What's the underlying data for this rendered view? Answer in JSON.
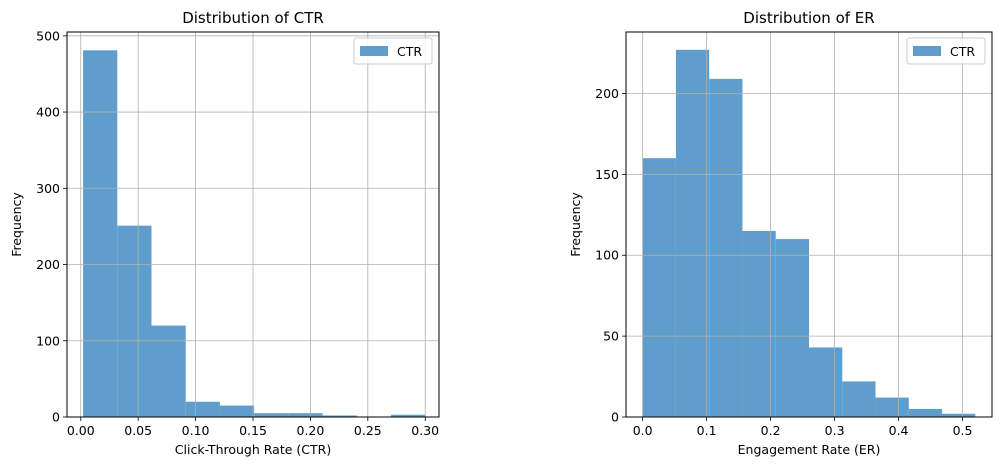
{
  "chart_data": [
    {
      "type": "bar",
      "title": "Distribution of CTR",
      "xlabel": "Click-Through Rate (CTR)",
      "ylabel": "Frequency",
      "xlim": [
        -0.012,
        0.312
      ],
      "ylim": [
        0,
        505
      ],
      "xticks": [
        0.0,
        0.05,
        0.1,
        0.15,
        0.2,
        0.25,
        0.3
      ],
      "xtick_labels": [
        "0.00",
        "0.05",
        "0.10",
        "0.15",
        "0.20",
        "0.25",
        "0.30"
      ],
      "yticks": [
        0,
        100,
        200,
        300,
        400,
        500
      ],
      "ytick_labels": [
        "0",
        "100",
        "200",
        "300",
        "400",
        "500"
      ],
      "bin_edges": [
        0.002,
        0.0318,
        0.0616,
        0.0914,
        0.1212,
        0.151,
        0.1808,
        0.2106,
        0.2404,
        0.2702,
        0.3
      ],
      "values": [
        481,
        251,
        120,
        20,
        15,
        5,
        5,
        2,
        0,
        3
      ],
      "legend": [
        "CTR"
      ],
      "legend_position": "top-right",
      "grid": true,
      "bar_color": "#5f9ecc"
    },
    {
      "type": "bar",
      "title": "Distribution of ER",
      "xlabel": "Engagement Rate (ER)",
      "ylabel": "Frequency",
      "xlim": [
        -0.026,
        0.546
      ],
      "ylim": [
        0,
        238
      ],
      "xticks": [
        0.0,
        0.1,
        0.2,
        0.3,
        0.4,
        0.5
      ],
      "xtick_labels": [
        "0.0",
        "0.1",
        "0.2",
        "0.3",
        "0.4",
        "0.5"
      ],
      "yticks": [
        0,
        50,
        100,
        150,
        200
      ],
      "ytick_labels": [
        "0",
        "50",
        "100",
        "150",
        "200"
      ],
      "bin_edges": [
        0.0,
        0.052,
        0.104,
        0.156,
        0.208,
        0.26,
        0.312,
        0.364,
        0.416,
        0.468,
        0.52
      ],
      "values": [
        160,
        227,
        209,
        115,
        110,
        43,
        22,
        12,
        5,
        2
      ],
      "legend": [
        "CTR"
      ],
      "legend_position": "top-right",
      "grid": true,
      "bar_color": "#5f9ecc"
    }
  ]
}
